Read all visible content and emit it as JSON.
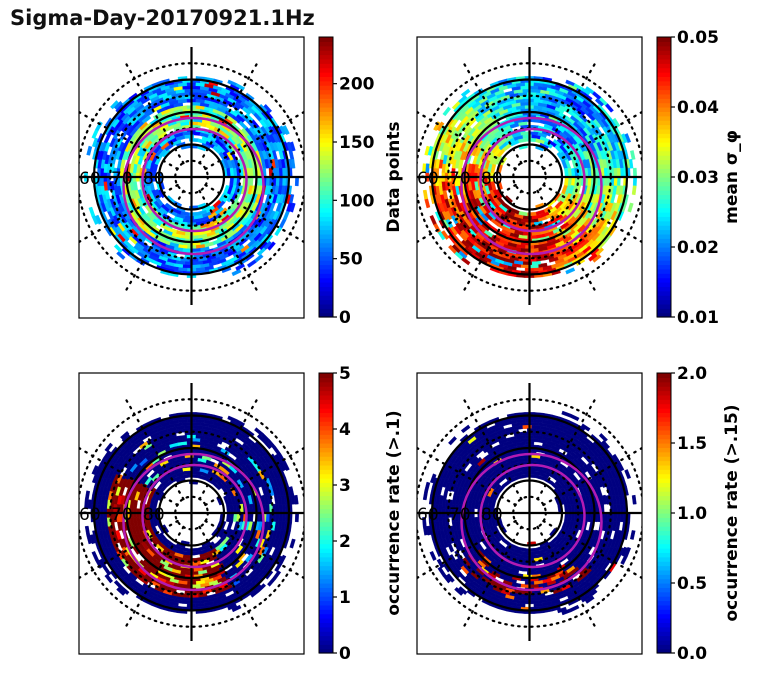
{
  "title": "Sigma-Day-20170921.1Hz",
  "chart_data": [
    {
      "type": "heatmap",
      "projection": "polar (magnetic latitude / MLT)",
      "panel": "top-left",
      "title": "",
      "colorbar": {
        "label": "Data points",
        "cmap": "jet",
        "range": [
          0,
          240
        ],
        "ticks": [
          0,
          50,
          100,
          150,
          200
        ],
        "tick_labels": [
          "0",
          "50",
          "100",
          "150",
          "200"
        ]
      },
      "lat_labels": [
        "60",
        "70",
        "80"
      ],
      "lat_circles_solid": [
        80,
        70,
        60
      ],
      "oval_boundaries": "two purple ellipses (auroral oval)",
      "dominant_values": "mostly 20-80 (blue/cyan), sparse highs up to ~220 near dusk/dawn at 70-75 deg"
    },
    {
      "type": "heatmap",
      "projection": "polar (magnetic latitude / MLT)",
      "panel": "top-right",
      "title": "",
      "colorbar": {
        "label": "mean σ_φ",
        "cmap": "jet",
        "range": [
          0.01,
          0.05
        ],
        "ticks": [
          0.01,
          0.02,
          0.03,
          0.04,
          0.05
        ],
        "tick_labels": [
          "0.01",
          "0.02",
          "0.03",
          "0.04",
          "0.05"
        ]
      },
      "lat_labels": [
        "60",
        "70",
        "80"
      ],
      "lat_circles_solid": [
        80,
        70,
        60
      ],
      "oval_boundaries": "two purple ellipses (auroral oval)",
      "dominant_values": "high (0.045-0.05) on nightside/dusk, mid (0.03-0.04) on dayside"
    },
    {
      "type": "heatmap",
      "projection": "polar (magnetic latitude / MLT)",
      "panel": "bottom-left",
      "title": "",
      "colorbar": {
        "label": "occurrence rate (>.1)",
        "cmap": "jet",
        "range": [
          0,
          5
        ],
        "ticks": [
          0,
          1,
          2,
          3,
          4,
          5
        ],
        "tick_labels": [
          "0",
          "1",
          "2",
          "3",
          "4",
          "5"
        ]
      },
      "lat_labels": [
        "60",
        "70",
        "80"
      ],
      "lat_circles_solid": [
        80,
        70,
        60
      ],
      "oval_boundaries": "two purple ellipses (auroral oval)",
      "dominant_values": "mostly 0 (dark blue), high (5) on nightside oval"
    },
    {
      "type": "heatmap",
      "projection": "polar (magnetic latitude / MLT)",
      "panel": "bottom-right",
      "title": "",
      "colorbar": {
        "label": "occurrence rate (>.15)",
        "cmap": "jet",
        "range": [
          0.0,
          2.0
        ],
        "ticks": [
          0.0,
          0.5,
          1.0,
          1.5,
          2.0
        ],
        "tick_labels": [
          "0.0",
          "0.5",
          "1.0",
          "1.5",
          "2.0"
        ]
      },
      "lat_labels": [
        "60",
        "70",
        "80"
      ],
      "lat_circles_solid": [
        80,
        70,
        60
      ],
      "oval_boundaries": "two purple ellipses (auroral oval)",
      "dominant_values": "mostly 0 (dark blue), sparse 2.0 cells near midnight oval"
    }
  ]
}
